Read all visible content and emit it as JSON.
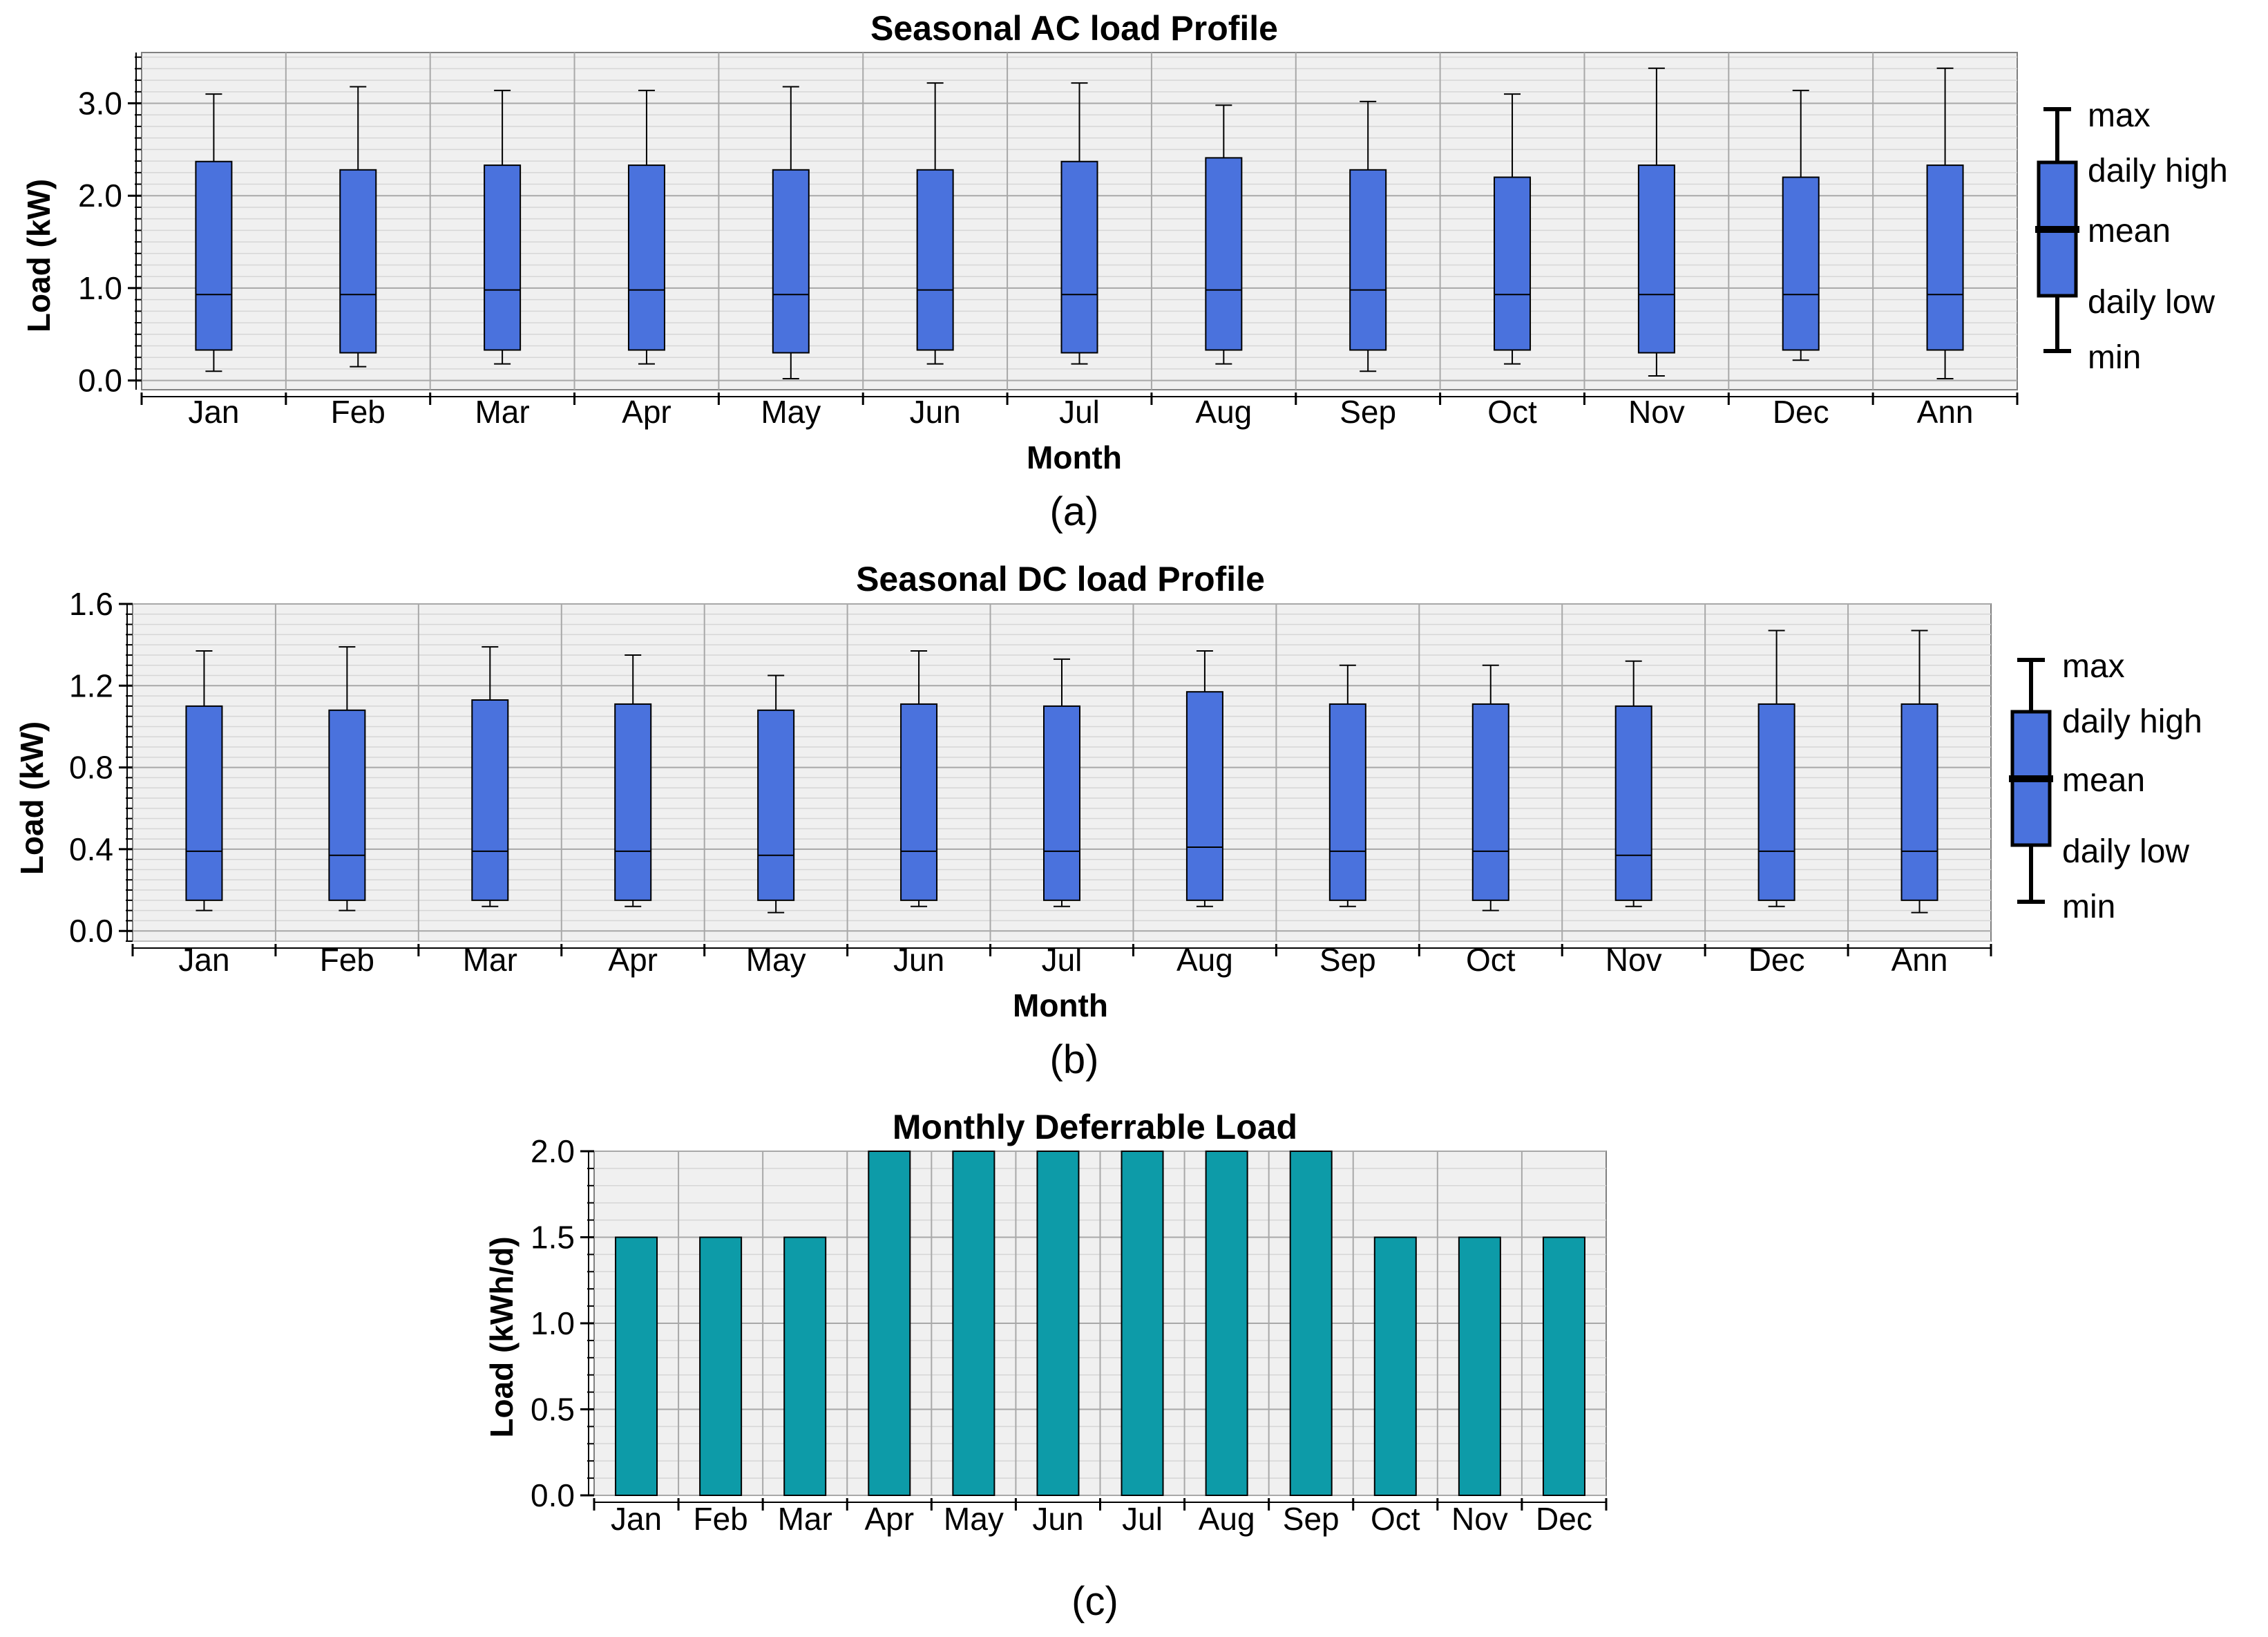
{
  "colors": {
    "box_fill": "#4a72dd",
    "bar_fill": "#0d9ba8",
    "plot_bg": "#f0f0f0",
    "grid": "#a8a8a8",
    "frame": "#808080"
  },
  "legend_labels": [
    "max",
    "daily high",
    "mean",
    "daily low",
    "min"
  ],
  "chart_data": [
    {
      "type": "box",
      "panel": "(a)",
      "title": "Seasonal AC load Profile",
      "xlabel": "Month",
      "ylabel": "Load (kW)",
      "ylim": [
        -0.1,
        3.55
      ],
      "yticks": [
        0.0,
        1.0,
        2.0,
        3.0
      ],
      "ytick_labels": [
        "0.0",
        "1.0",
        "2.0",
        "3.0"
      ],
      "categories": [
        "Jan",
        "Feb",
        "Mar",
        "Apr",
        "May",
        "Jun",
        "Jul",
        "Aug",
        "Sep",
        "Oct",
        "Nov",
        "Dec",
        "Ann"
      ],
      "min": [
        0.1,
        0.15,
        0.18,
        0.18,
        0.02,
        0.18,
        0.18,
        0.18,
        0.1,
        0.18,
        0.05,
        0.22,
        0.02
      ],
      "daily_low": [
        0.33,
        0.3,
        0.33,
        0.33,
        0.3,
        0.33,
        0.3,
        0.33,
        0.33,
        0.33,
        0.3,
        0.33,
        0.33
      ],
      "mean": [
        0.93,
        0.93,
        0.98,
        0.98,
        0.93,
        0.98,
        0.93,
        0.98,
        0.98,
        0.93,
        0.93,
        0.93,
        0.93
      ],
      "daily_high": [
        2.37,
        2.28,
        2.33,
        2.33,
        2.28,
        2.28,
        2.37,
        2.41,
        2.28,
        2.2,
        2.33,
        2.2,
        2.33
      ],
      "max": [
        3.1,
        3.18,
        3.14,
        3.14,
        3.18,
        3.22,
        3.22,
        2.98,
        3.02,
        3.1,
        3.38,
        3.14,
        3.38
      ]
    },
    {
      "type": "box",
      "panel": "(b)",
      "title": "Seasonal DC load Profile",
      "xlabel": "Month",
      "ylabel": "Load (kW)",
      "ylim": [
        -0.05,
        1.6
      ],
      "yticks": [
        0.0,
        0.4,
        0.8,
        1.2,
        1.6
      ],
      "ytick_labels": [
        "0.0",
        "0.4",
        "0.8",
        "1.2",
        "1.6"
      ],
      "categories": [
        "Jan",
        "Feb",
        "Mar",
        "Apr",
        "May",
        "Jun",
        "Jul",
        "Aug",
        "Sep",
        "Oct",
        "Nov",
        "Dec",
        "Ann"
      ],
      "min": [
        0.1,
        0.1,
        0.12,
        0.12,
        0.09,
        0.12,
        0.12,
        0.12,
        0.12,
        0.1,
        0.12,
        0.12,
        0.09
      ],
      "daily_low": [
        0.15,
        0.15,
        0.15,
        0.15,
        0.15,
        0.15,
        0.15,
        0.15,
        0.15,
        0.15,
        0.15,
        0.15,
        0.15
      ],
      "mean": [
        0.39,
        0.37,
        0.39,
        0.39,
        0.37,
        0.39,
        0.39,
        0.41,
        0.39,
        0.39,
        0.37,
        0.39,
        0.39
      ],
      "daily_high": [
        1.1,
        1.08,
        1.13,
        1.11,
        1.08,
        1.11,
        1.1,
        1.17,
        1.11,
        1.11,
        1.1,
        1.11,
        1.11
      ],
      "max": [
        1.37,
        1.39,
        1.39,
        1.35,
        1.25,
        1.37,
        1.33,
        1.37,
        1.3,
        1.3,
        1.32,
        1.47,
        1.47
      ]
    },
    {
      "type": "bar",
      "panel": "(c)",
      "title": "Monthly Deferrable Load",
      "xlabel": "",
      "ylabel": "Load (kWh/d)",
      "ylim": [
        0.0,
        2.0
      ],
      "yticks": [
        0.0,
        0.5,
        1.0,
        1.5,
        2.0
      ],
      "ytick_labels": [
        "0.0",
        "0.5",
        "1.0",
        "1.5",
        "2.0"
      ],
      "categories": [
        "Jan",
        "Feb",
        "Mar",
        "Apr",
        "May",
        "Jun",
        "Jul",
        "Aug",
        "Sep",
        "Oct",
        "Nov",
        "Dec"
      ],
      "values": [
        1.5,
        1.5,
        1.5,
        2.0,
        2.0,
        2.0,
        2.0,
        2.0,
        2.0,
        1.5,
        1.5,
        1.5
      ]
    }
  ]
}
